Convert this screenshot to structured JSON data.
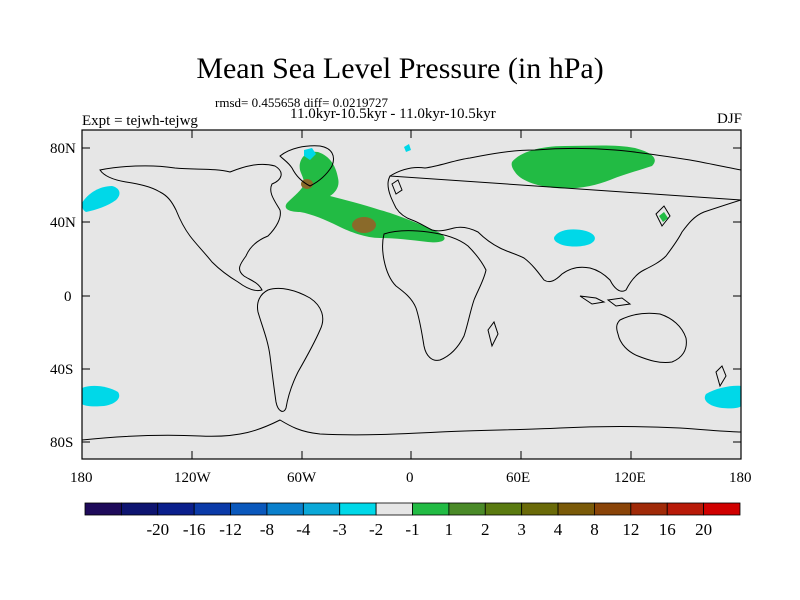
{
  "title": "Mean Sea Level Pressure (in hPa)",
  "stats": "rmsd= 0.455658 diff= 0.0219727",
  "period": "11.0kyr-10.5kyr - 11.0kyr-10.5kyr",
  "expt": "Expt = tejwh-tejwg",
  "season": "DJF",
  "colors": {
    "land_bg": "#e6e6e6",
    "neg1": "#00d8e8",
    "pos1": "#22bb44",
    "pos3": "#8a6a2a",
    "coast": "#000000"
  },
  "map_data": {
    "type": "filled-contour-map",
    "lon_range": [
      -180,
      180
    ],
    "lat_range": [
      -90,
      90
    ],
    "lat_ticks": [
      "80N",
      "40N",
      "0",
      "40S",
      "80S"
    ],
    "lon_ticks": [
      "180",
      "120W",
      "60W",
      "0",
      "60E",
      "120E",
      "180"
    ],
    "colorbar": {
      "colors": [
        "#1e0a5a",
        "#0e1470",
        "#0a1f8c",
        "#0a3aa8",
        "#0a58bc",
        "#0a80cc",
        "#0aa8d8",
        "#00d8e8",
        "#e6e6e6",
        "#22bb44",
        "#4a8a28",
        "#5a7a10",
        "#6a6a08",
        "#7a5a08",
        "#8a4408",
        "#a02a08",
        "#b81a08",
        "#d00000"
      ],
      "labels": [
        "-20",
        "-16",
        "-12",
        "-8",
        "-4",
        "-3",
        "-2",
        "-1",
        "1",
        "2",
        "3",
        "4",
        "8",
        "12",
        "16",
        "20"
      ]
    }
  }
}
